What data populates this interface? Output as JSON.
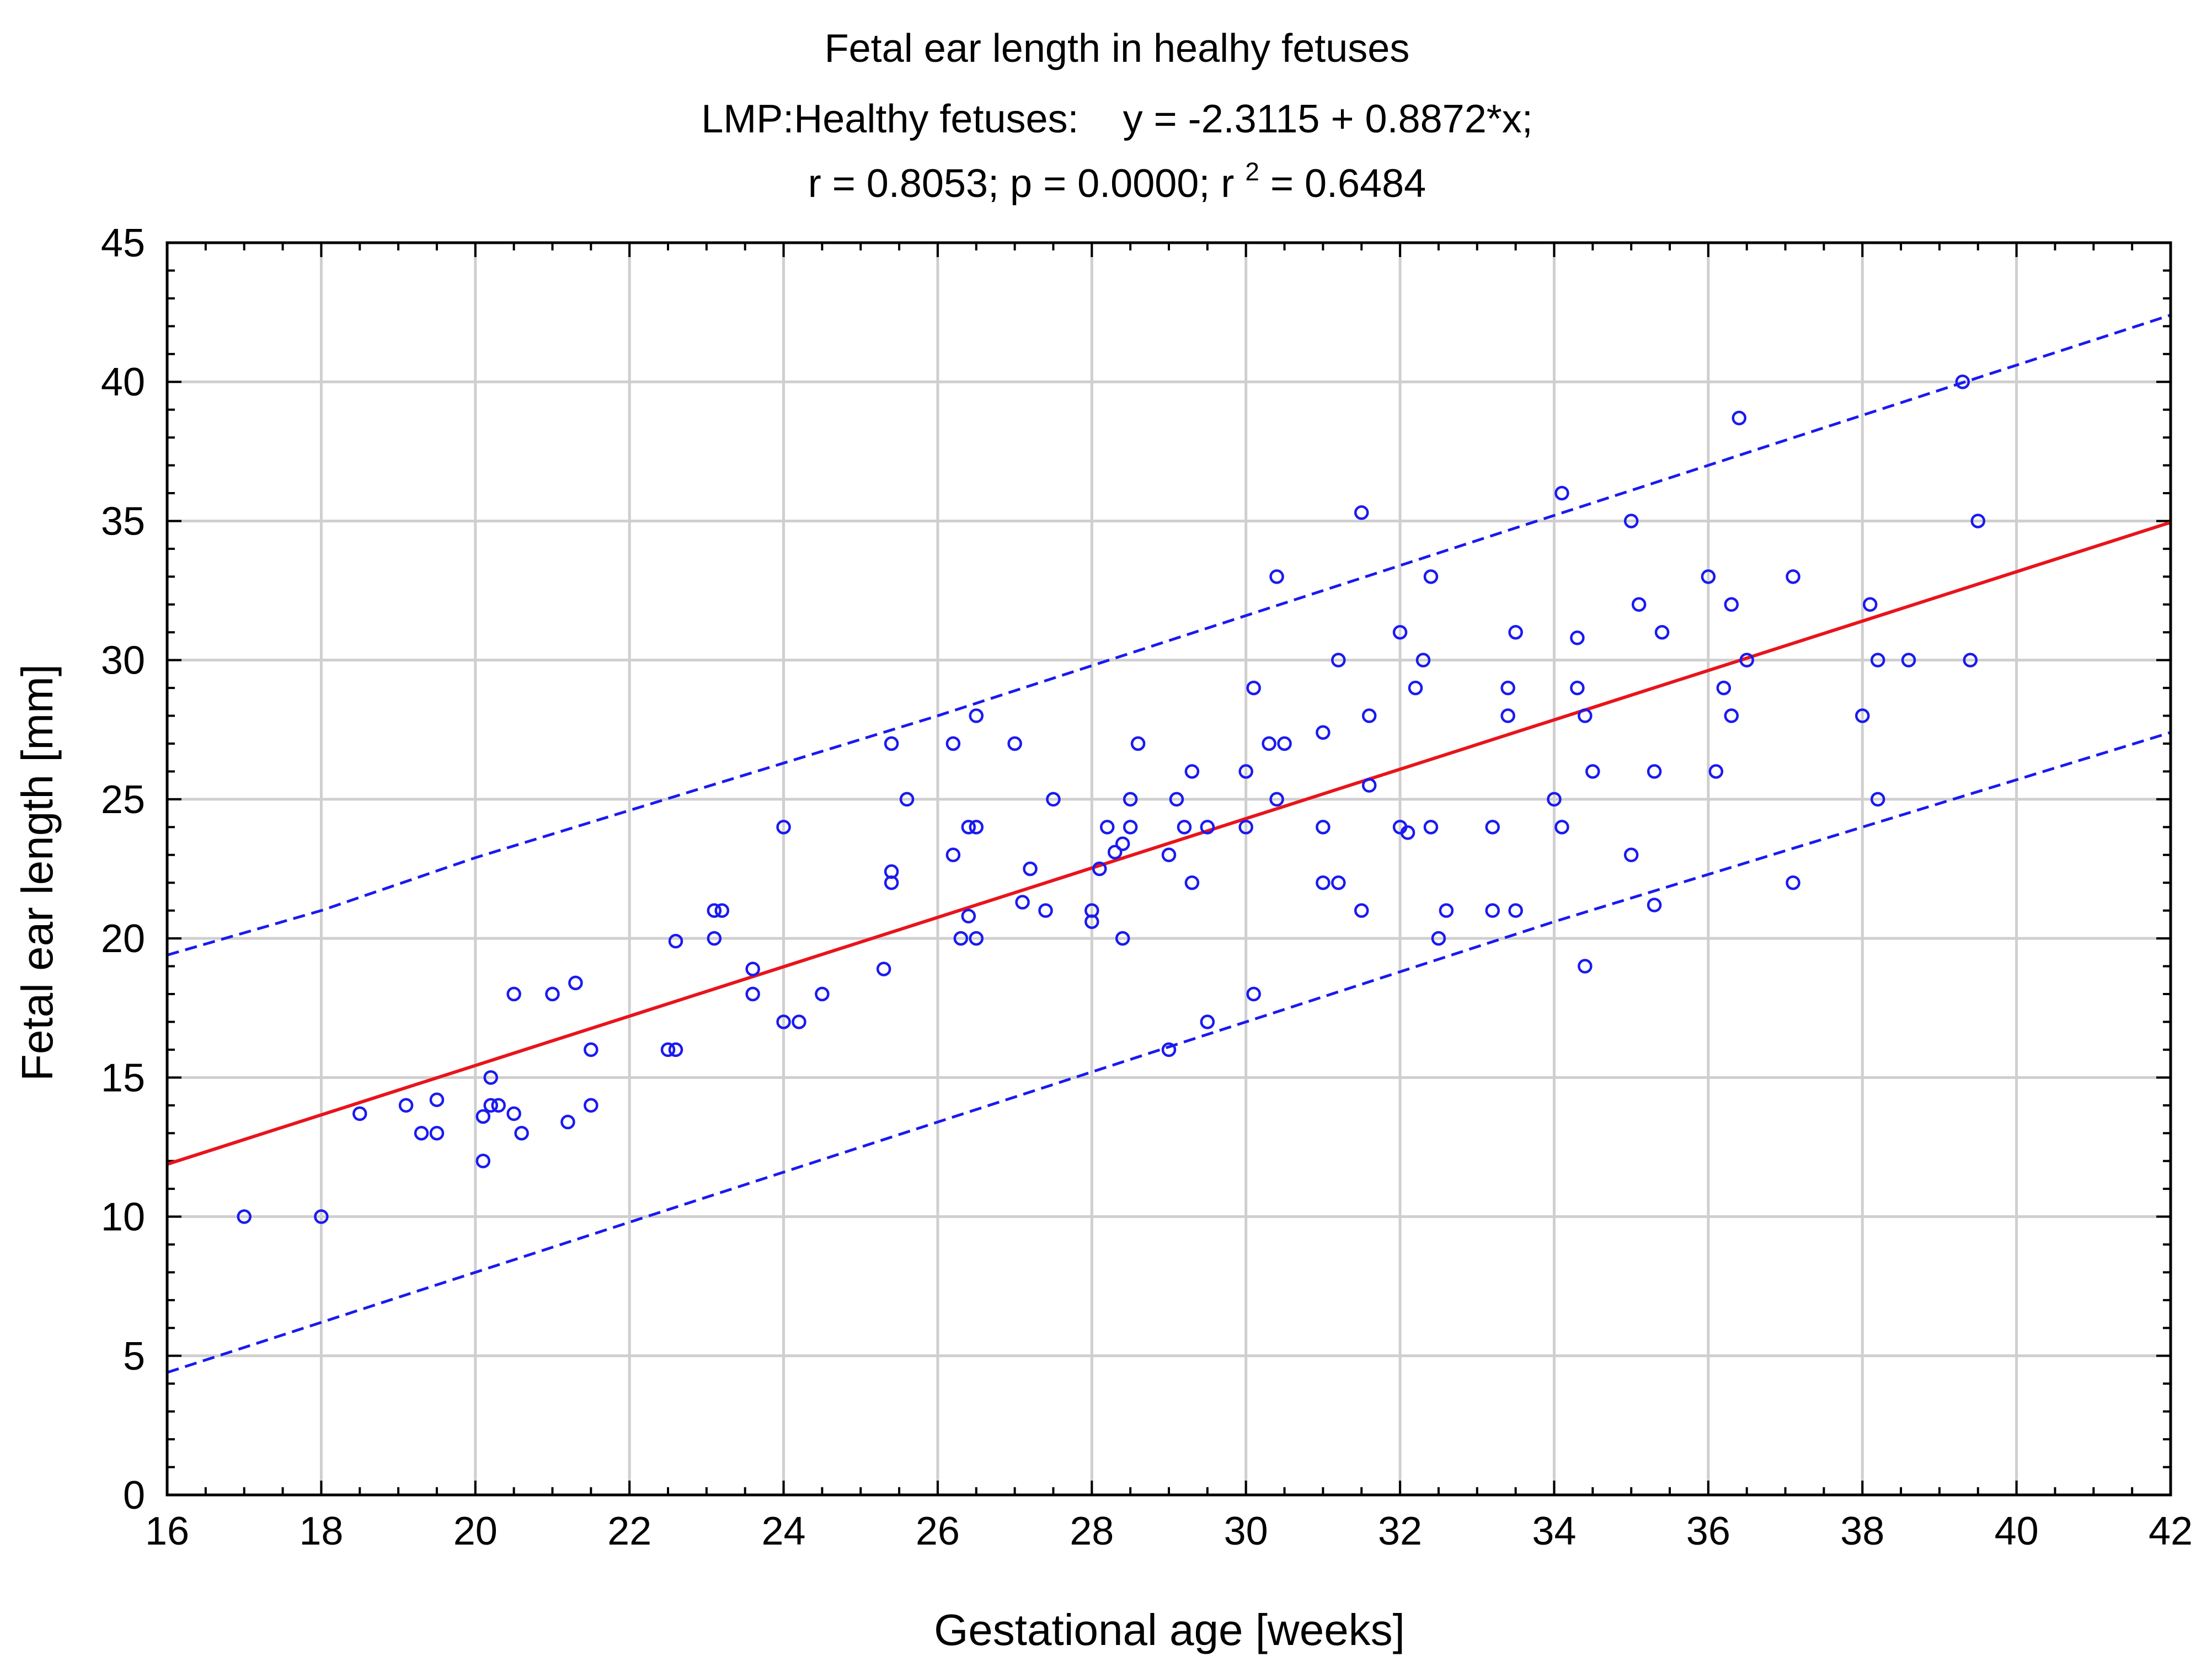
{
  "chart_data": {
    "type": "scatter",
    "title": "Fetal ear length in healhy fetuses",
    "subtitle": {
      "prefix": "LMP:Healthy fetuses:",
      "equation": "y = -2.3115 + 0.8872*x;",
      "stats_before_sup": "r = 0.8053; p = 0.0000; r",
      "stats_sup": "2",
      "stats_after_sup": " = 0.6484"
    },
    "xlabel": "Gestational age [weeks]",
    "ylabel": "Fetal ear length [mm]",
    "xlim": [
      16,
      42
    ],
    "ylim": [
      0,
      45
    ],
    "x_ticks": [
      16,
      18,
      20,
      22,
      24,
      26,
      28,
      30,
      32,
      34,
      36,
      38,
      40,
      42
    ],
    "y_ticks": [
      0,
      5,
      10,
      15,
      20,
      25,
      30,
      35,
      40,
      45
    ],
    "x_minor_step": 0.5,
    "y_minor_step": 1,
    "grid": true,
    "regression": {
      "intercept": -2.3115,
      "slope": 0.8872,
      "color": "#e8141b"
    },
    "prediction_band": {
      "color": "#1a1af0",
      "upper": [
        [
          16,
          19.4
        ],
        [
          18,
          21.0
        ],
        [
          20,
          22.9
        ],
        [
          22,
          24.6
        ],
        [
          24,
          26.3
        ],
        [
          26,
          28.0
        ],
        [
          28,
          29.8
        ],
        [
          30,
          31.6
        ],
        [
          32,
          33.4
        ],
        [
          34,
          35.2
        ],
        [
          36,
          37.0
        ],
        [
          38,
          38.8
        ],
        [
          40,
          40.6
        ],
        [
          42,
          42.4
        ]
      ],
      "lower": [
        [
          16,
          4.4
        ],
        [
          18,
          6.2
        ],
        [
          20,
          8.0
        ],
        [
          22,
          9.8
        ],
        [
          24,
          11.6
        ],
        [
          26,
          13.4
        ],
        [
          28,
          15.2
        ],
        [
          30,
          17.0
        ],
        [
          32,
          18.8
        ],
        [
          34,
          20.6
        ],
        [
          36,
          22.3
        ],
        [
          38,
          24.0
        ],
        [
          40,
          25.7
        ],
        [
          42,
          27.4
        ]
      ]
    },
    "point_color": "#1a1af0",
    "series": [
      {
        "name": "Healthy fetuses",
        "points": [
          [
            17,
            10
          ],
          [
            18,
            10
          ],
          [
            18.5,
            13.7
          ],
          [
            19.1,
            14
          ],
          [
            19.3,
            13
          ],
          [
            19.5,
            14.2
          ],
          [
            19.5,
            13
          ],
          [
            20.1,
            12
          ],
          [
            20.1,
            13.6
          ],
          [
            20.2,
            14
          ],
          [
            20.2,
            15
          ],
          [
            20.3,
            14
          ],
          [
            20.5,
            13.7
          ],
          [
            20.5,
            18
          ],
          [
            20.6,
            13
          ],
          [
            21,
            18
          ],
          [
            21.2,
            13.4
          ],
          [
            21.3,
            18.4
          ],
          [
            21.5,
            16
          ],
          [
            21.5,
            14
          ],
          [
            22.5,
            16
          ],
          [
            22.6,
            16
          ],
          [
            22.6,
            19.9
          ],
          [
            23.1,
            20
          ],
          [
            23.1,
            21
          ],
          [
            23.2,
            21
          ],
          [
            23.6,
            18
          ],
          [
            23.6,
            18.9
          ],
          [
            24,
            24
          ],
          [
            24,
            17
          ],
          [
            24.2,
            17
          ],
          [
            24.5,
            18
          ],
          [
            25.3,
            18.9
          ],
          [
            25.4,
            27
          ],
          [
            25.4,
            22.4
          ],
          [
            25.4,
            22
          ],
          [
            25.6,
            25
          ],
          [
            26.2,
            27
          ],
          [
            26.2,
            23
          ],
          [
            26.3,
            20
          ],
          [
            26.4,
            24
          ],
          [
            26.4,
            20.8
          ],
          [
            26.5,
            28
          ],
          [
            26.5,
            24
          ],
          [
            26.5,
            20
          ],
          [
            27,
            27
          ],
          [
            27.1,
            21.3
          ],
          [
            27.2,
            22.5
          ],
          [
            27.4,
            21
          ],
          [
            27.5,
            25
          ],
          [
            28,
            21
          ],
          [
            28,
            20.6
          ],
          [
            28.1,
            22.5
          ],
          [
            28.2,
            24
          ],
          [
            28.3,
            23.1
          ],
          [
            28.4,
            23.4
          ],
          [
            28.4,
            20
          ],
          [
            28.5,
            25
          ],
          [
            28.5,
            24
          ],
          [
            28.6,
            27
          ],
          [
            29,
            23
          ],
          [
            29,
            16
          ],
          [
            29.1,
            25
          ],
          [
            29.2,
            24
          ],
          [
            29.3,
            22
          ],
          [
            29.3,
            26
          ],
          [
            29.5,
            24
          ],
          [
            29.5,
            17
          ],
          [
            30,
            26
          ],
          [
            30,
            24
          ],
          [
            30.1,
            29
          ],
          [
            30.1,
            18
          ],
          [
            30.3,
            27
          ],
          [
            30.4,
            25
          ],
          [
            30.4,
            33
          ],
          [
            30.5,
            27
          ],
          [
            31,
            27.4
          ],
          [
            31,
            24
          ],
          [
            31,
            22
          ],
          [
            31.2,
            30
          ],
          [
            31.2,
            22
          ],
          [
            31.5,
            21
          ],
          [
            31.5,
            35.3
          ],
          [
            31.6,
            28
          ],
          [
            31.6,
            25.5
          ],
          [
            32,
            31
          ],
          [
            32,
            24
          ],
          [
            32.1,
            23.8
          ],
          [
            32.2,
            29
          ],
          [
            32.3,
            30
          ],
          [
            32.4,
            33
          ],
          [
            32.4,
            24
          ],
          [
            32.5,
            20
          ],
          [
            32.6,
            21
          ],
          [
            33.2,
            24
          ],
          [
            33.2,
            21
          ],
          [
            33.4,
            29
          ],
          [
            33.4,
            28
          ],
          [
            33.5,
            31
          ],
          [
            33.5,
            21
          ],
          [
            34,
            25
          ],
          [
            34.1,
            36
          ],
          [
            34.1,
            24
          ],
          [
            34.3,
            30.8
          ],
          [
            34.3,
            29
          ],
          [
            34.4,
            28
          ],
          [
            34.4,
            19
          ],
          [
            34.5,
            26
          ],
          [
            35,
            35
          ],
          [
            35,
            23
          ],
          [
            35.1,
            32
          ],
          [
            35.3,
            26
          ],
          [
            35.3,
            21.2
          ],
          [
            35.4,
            31
          ],
          [
            36,
            33
          ],
          [
            36.1,
            26
          ],
          [
            36.2,
            29
          ],
          [
            36.3,
            32
          ],
          [
            36.3,
            28
          ],
          [
            36.4,
            38.7
          ],
          [
            36.5,
            30
          ],
          [
            37.1,
            33
          ],
          [
            37.1,
            22
          ],
          [
            38,
            28
          ],
          [
            38.1,
            32
          ],
          [
            38.2,
            30
          ],
          [
            38.2,
            25
          ],
          [
            38.6,
            30
          ],
          [
            39.3,
            40
          ],
          [
            39.4,
            30
          ],
          [
            39.5,
            35
          ]
        ]
      }
    ]
  }
}
